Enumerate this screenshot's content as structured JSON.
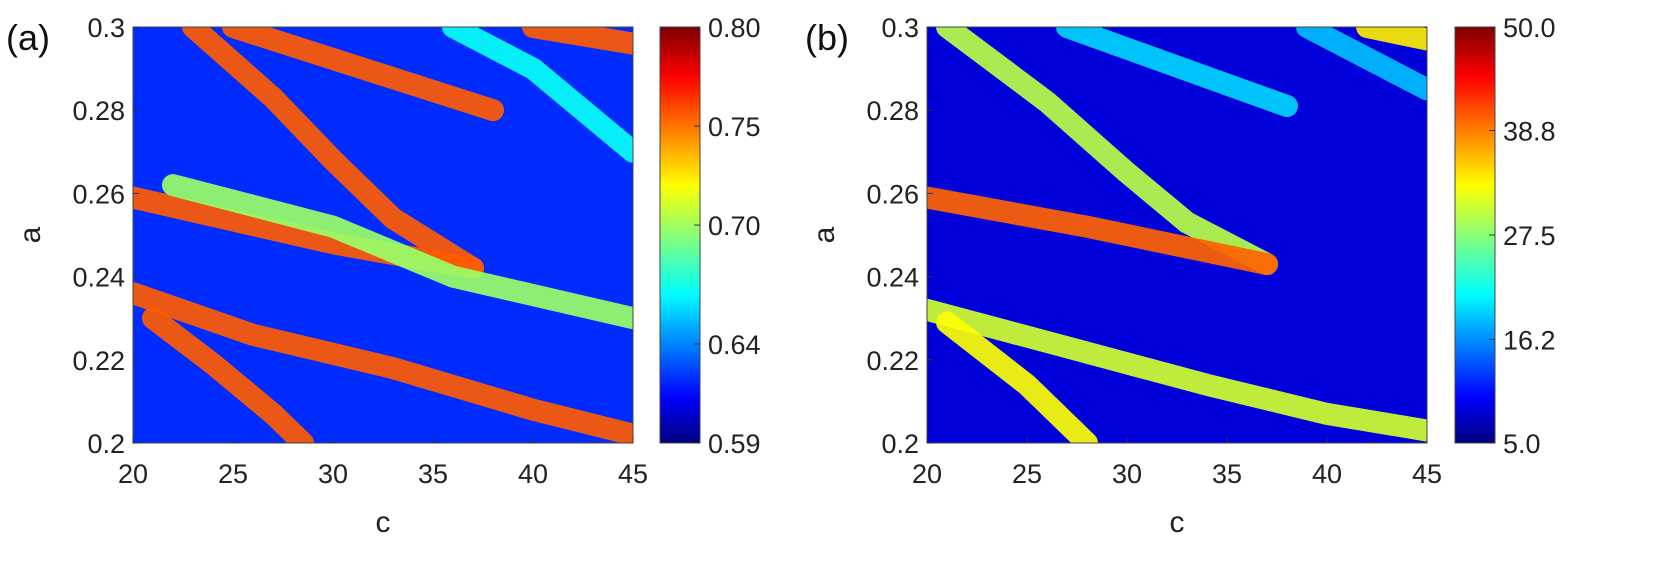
{
  "chart_data": [
    {
      "type": "heatmap",
      "panel_label": "(a)",
      "xlabel": "c",
      "ylabel": "a",
      "xlim": [
        20,
        45
      ],
      "ylim": [
        0.2,
        0.3
      ],
      "x_ticks": [
        20,
        25,
        30,
        35,
        40,
        45
      ],
      "x_tick_labels": [
        "20",
        "25",
        "30",
        "35",
        "40",
        "45"
      ],
      "y_ticks": [
        0.2,
        0.22,
        0.24,
        0.26,
        0.28,
        0.3
      ],
      "y_tick_labels": [
        "0.2",
        "0.22",
        "0.24",
        "0.26",
        "0.28",
        "0.3"
      ],
      "colormap": "jet",
      "colorbar": {
        "range": [
          0.59,
          0.8
        ],
        "ticks": [
          0.59,
          0.64,
          0.7,
          0.75,
          0.8
        ],
        "tick_labels": [
          "0.59",
          "0.64",
          "0.70",
          "0.75",
          "0.80"
        ]
      },
      "background_value": 0.625,
      "features": [
        {
          "kind": "band",
          "path": [
            [
              20,
              0.236
            ],
            [
              26,
              0.226
            ],
            [
              33,
              0.218
            ],
            [
              40,
              0.208
            ],
            [
              45,
              0.202
            ]
          ],
          "value": 0.755
        },
        {
          "kind": "band",
          "path": [
            [
              21,
              0.23
            ],
            [
              24,
              0.219
            ],
            [
              27,
              0.207
            ],
            [
              28.5,
              0.2
            ]
          ],
          "value": 0.755
        },
        {
          "kind": "band",
          "path": [
            [
              23,
              0.3
            ],
            [
              27,
              0.283
            ],
            [
              30,
              0.268
            ],
            [
              33,
              0.254
            ],
            [
              37,
              0.242
            ]
          ],
          "value": 0.755
        },
        {
          "kind": "band",
          "path": [
            [
              20,
              0.259
            ],
            [
              30,
              0.248
            ],
            [
              37,
              0.242
            ]
          ],
          "value": 0.755
        },
        {
          "kind": "band",
          "path": [
            [
              25,
              0.3
            ],
            [
              38,
              0.28
            ]
          ],
          "value": 0.755
        },
        {
          "kind": "band",
          "path": [
            [
              40,
              0.3
            ],
            [
              45,
              0.296
            ]
          ],
          "value": 0.755
        },
        {
          "kind": "band",
          "path": [
            [
              36,
              0.3
            ],
            [
              40,
              0.29
            ],
            [
              45,
              0.27
            ]
          ],
          "value": 0.67
        },
        {
          "kind": "band",
          "path": [
            [
              22,
              0.262
            ],
            [
              30,
              0.252
            ],
            [
              36,
              0.24
            ],
            [
              45,
              0.23
            ]
          ],
          "value": 0.7
        }
      ]
    },
    {
      "type": "heatmap",
      "panel_label": "(b)",
      "xlabel": "c",
      "ylabel": "a",
      "xlim": [
        20,
        45
      ],
      "ylim": [
        0.2,
        0.3
      ],
      "x_ticks": [
        20,
        25,
        30,
        35,
        40,
        45
      ],
      "x_tick_labels": [
        "20",
        "25",
        "30",
        "35",
        "40",
        "45"
      ],
      "y_ticks": [
        0.2,
        0.22,
        0.24,
        0.26,
        0.28,
        0.3
      ],
      "y_tick_labels": [
        "0.2",
        "0.22",
        "0.24",
        "0.26",
        "0.28",
        "0.3"
      ],
      "colormap": "jet",
      "colorbar": {
        "range": [
          5.0,
          50.0
        ],
        "ticks": [
          5.0,
          16.2,
          27.5,
          38.8,
          50.0
        ],
        "tick_labels": [
          "5.0",
          "16.2",
          "27.5",
          "38.8",
          "50.0"
        ]
      },
      "background_value": 9,
      "features": [
        {
          "kind": "band",
          "path": [
            [
              20,
              0.232
            ],
            [
              27,
              0.223
            ],
            [
              34,
              0.214
            ],
            [
              40,
              0.207
            ],
            [
              45,
              0.203
            ]
          ],
          "value": 31
        },
        {
          "kind": "band",
          "path": [
            [
              21,
              0.229
            ],
            [
              25,
              0.214
            ],
            [
              28,
              0.2
            ]
          ],
          "value": 33
        },
        {
          "kind": "band",
          "path": [
            [
              21,
              0.3
            ],
            [
              26,
              0.282
            ],
            [
              30,
              0.265
            ],
            [
              33,
              0.253
            ],
            [
              37,
              0.243
            ]
          ],
          "value": 30
        },
        {
          "kind": "band",
          "path": [
            [
              20,
              0.259
            ],
            [
              28,
              0.252
            ],
            [
              37,
              0.243
            ]
          ],
          "value": 40
        },
        {
          "kind": "band",
          "path": [
            [
              27,
              0.3
            ],
            [
              38,
              0.281
            ]
          ],
          "value": 20
        },
        {
          "kind": "band",
          "path": [
            [
              39,
              0.3
            ],
            [
              45,
              0.285
            ]
          ],
          "value": 19
        },
        {
          "kind": "band",
          "path": [
            [
              42,
              0.3
            ],
            [
              45,
              0.297
            ]
          ],
          "value": 34
        }
      ]
    }
  ]
}
